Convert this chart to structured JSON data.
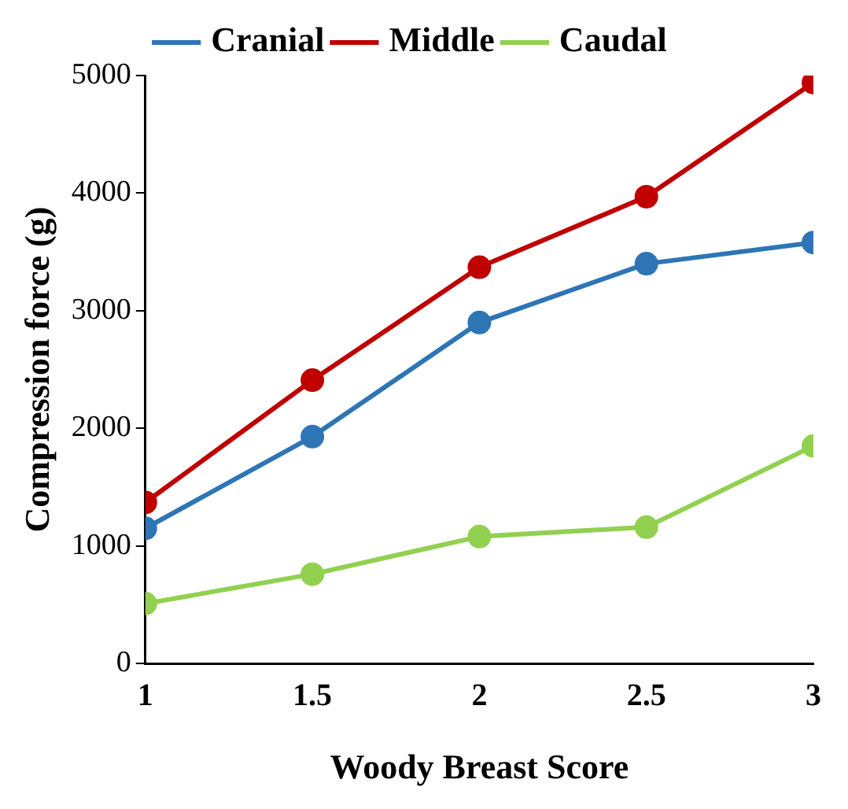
{
  "chart_data": {
    "type": "line",
    "xlabel": "Woody Breast Score",
    "ylabel": "Compression force (g)",
    "x": [
      1,
      1.5,
      2,
      2.5,
      3
    ],
    "series": [
      {
        "name": "Cranial",
        "color": "#2e75b6",
        "values": [
          1150,
          1930,
          2900,
          3400,
          3580
        ]
      },
      {
        "name": "Middle",
        "color": "#c00000",
        "values": [
          1370,
          2410,
          3370,
          3970,
          4940
        ]
      },
      {
        "name": "Caudal",
        "color": "#92d050",
        "values": [
          510,
          760,
          1080,
          1160,
          1850
        ]
      }
    ],
    "xlim": [
      1,
      3
    ],
    "xticks": [
      1,
      1.5,
      2,
      2.5,
      3
    ],
    "ylim": [
      0,
      5000
    ],
    "yticks": [
      0,
      1000,
      2000,
      3000,
      4000,
      5000
    ],
    "grid": false,
    "legend": "top",
    "marker": "circle",
    "line_style": "solid"
  }
}
